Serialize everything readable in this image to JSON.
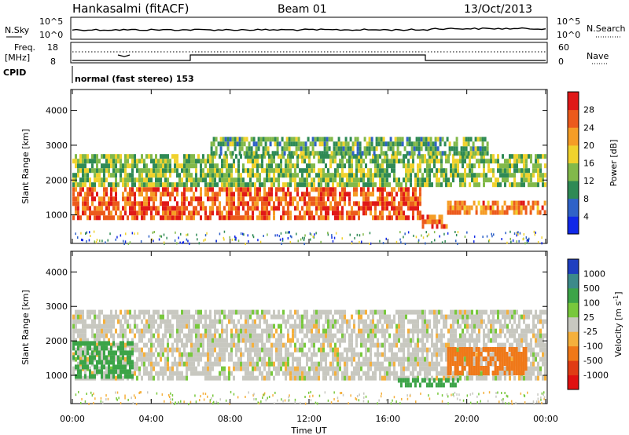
{
  "header": {
    "station": "Hankasalmi (fitACF)",
    "beam": "Beam 01",
    "date": "13/Oct/2013"
  },
  "strips": {
    "nsky_label": "N.Sky",
    "nsearch_label": "N.Search",
    "noise_ticks_left": [
      "10^5",
      "10^0"
    ],
    "noise_ticks_right": [
      "10^5",
      "10^0"
    ],
    "freq_label": "Freq.",
    "freq_unit": "[MHz]",
    "freq_ticks": [
      "18",
      "8"
    ],
    "nave_label": "Nave",
    "nave_ticks": [
      "60",
      "0"
    ],
    "cpid_label": "CPID",
    "cpid_text": "normal (fast stereo) 153"
  },
  "chart_data": [
    {
      "type": "heatmap",
      "name": "power",
      "xlabel": "",
      "ylabel": "Slant Range [km]",
      "xlim": [
        0,
        24
      ],
      "ylim": [
        180,
        4600
      ],
      "yticks": [
        1000,
        2000,
        3000,
        4000
      ],
      "colorbar": {
        "label": "Power [dB]",
        "ticks": [
          "4",
          "8",
          "12",
          "16",
          "20",
          "24",
          "28"
        ],
        "colors": [
          "#1028e8",
          "#2f62c8",
          "#2f8a55",
          "#82b94a",
          "#f0d22d",
          "#f59d26",
          "#ec5a1c",
          "#e01818"
        ]
      },
      "regions": [
        {
          "band": "main echo",
          "t_start": 0.0,
          "t_end": 17.6,
          "range_km": [
            850,
            1700
          ],
          "power_db": 26
        },
        {
          "band": "main echo",
          "t_start": 17.6,
          "t_end": 19.0,
          "range_km": [
            600,
            900
          ],
          "power_db": 26
        },
        {
          "band": "main echo",
          "t_start": 19.0,
          "t_end": 24.0,
          "range_km": [
            1000,
            1300
          ],
          "power_db": 24
        },
        {
          "band": "upper echo",
          "t_start": 0.0,
          "t_end": 24.0,
          "range_km": [
            1800,
            2700
          ],
          "power_db": 14
        },
        {
          "band": "far echo",
          "t_start": 7.0,
          "t_end": 21.0,
          "range_km": [
            2700,
            3200
          ],
          "power_db": 12
        }
      ]
    },
    {
      "type": "heatmap",
      "name": "velocity",
      "xlabel": "Time UT",
      "ylabel": "Slant Range [km]",
      "xlim": [
        0,
        24
      ],
      "ylim": [
        180,
        4600
      ],
      "xticks": [
        "00:00",
        "04:00",
        "08:00",
        "12:00",
        "16:00",
        "20:00",
        "00:00"
      ],
      "yticks": [
        1000,
        2000,
        3000,
        4000
      ],
      "colorbar": {
        "label": "Velocity [m s",
        "label_sup": "-1",
        "label_end": "]",
        "ticks": [
          "1000",
          "500",
          "100",
          "25",
          "-25",
          "-100",
          "-500",
          "-1000"
        ],
        "colors": [
          "#1f3fc0",
          "#3c8a8a",
          "#3ca448",
          "#78c83c",
          "#c8c8c0",
          "#f5b03c",
          "#f07818",
          "#e03c14",
          "#e01010"
        ]
      },
      "regions": [
        {
          "band": "ground scatter",
          "t_start": 0.0,
          "t_end": 24.0,
          "range_km": [
            850,
            2800
          ],
          "velocity_ms": 0
        },
        {
          "band": "towards radar",
          "t_start": 0.0,
          "t_end": 3.0,
          "range_km": [
            900,
            1900
          ],
          "velocity_ms": 200
        },
        {
          "band": "towards radar",
          "t_start": 16.5,
          "t_end": 19.5,
          "range_km": [
            650,
            900
          ],
          "velocity_ms": 150
        },
        {
          "band": "away from radar",
          "t_start": 19.0,
          "t_end": 23.0,
          "range_km": [
            1000,
            1700
          ],
          "velocity_ms": -300
        }
      ]
    }
  ]
}
